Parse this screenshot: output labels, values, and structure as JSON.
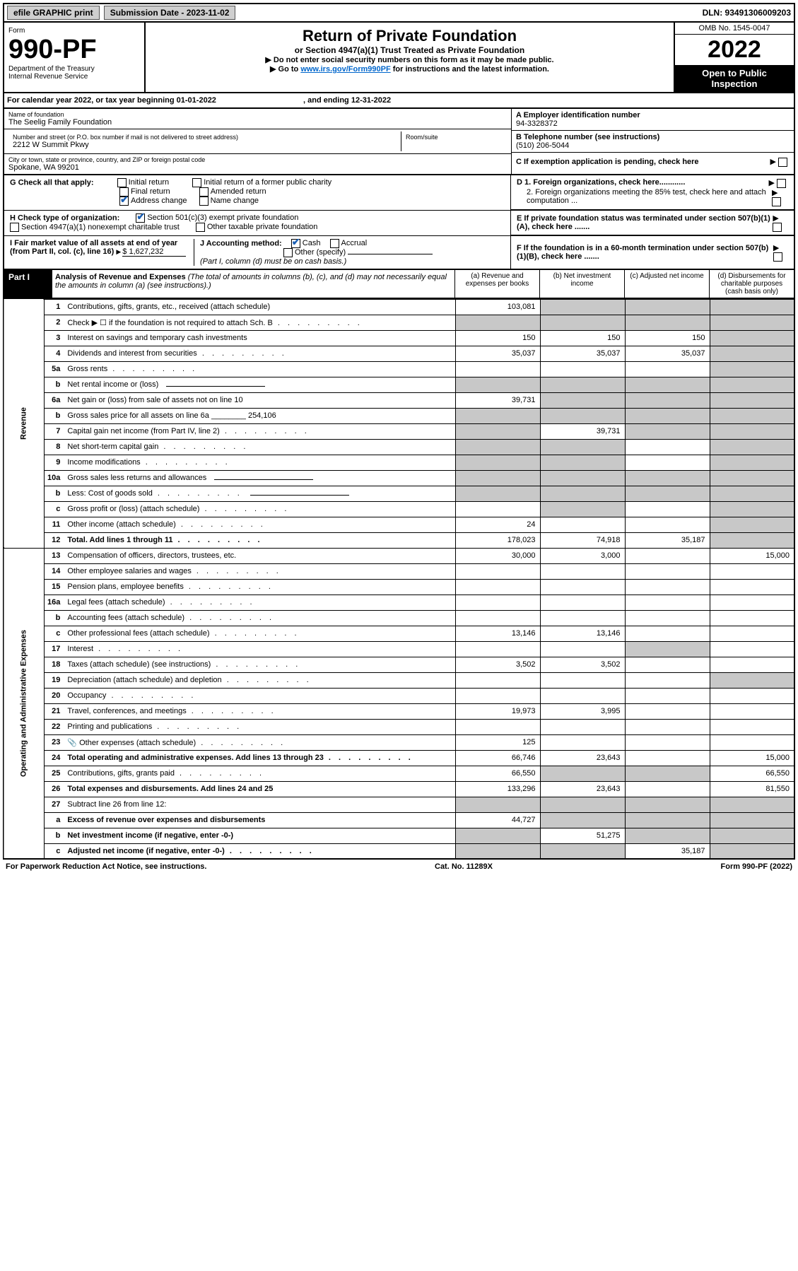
{
  "top": {
    "efile": "efile GRAPHIC print",
    "subdate_label": "Submission Date - 2023-11-02",
    "dln": "DLN: 93491306009203"
  },
  "header": {
    "form_label": "Form",
    "form_no": "990-PF",
    "dept": "Department of the Treasury",
    "irs": "Internal Revenue Service",
    "title": "Return of Private Foundation",
    "subtitle": "or Section 4947(a)(1) Trust Treated as Private Foundation",
    "instr1": "▶ Do not enter social security numbers on this form as it may be made public.",
    "instr2_pre": "▶ Go to ",
    "instr2_link": "www.irs.gov/Form990PF",
    "instr2_post": " for instructions and the latest information.",
    "omb": "OMB No. 1545-0047",
    "year": "2022",
    "open": "Open to Public Inspection"
  },
  "cal": {
    "text_pre": "For calendar year 2022, or tax year beginning ",
    "begin": "01-01-2022",
    "mid": " , and ending ",
    "end": "12-31-2022"
  },
  "name": {
    "label": "Name of foundation",
    "value": "The Seelig Family Foundation",
    "addr_label": "Number and street (or P.O. box number if mail is not delivered to street address)",
    "addr": "2212 W Summit Pkwy",
    "room_label": "Room/suite",
    "city_label": "City or town, state or province, country, and ZIP or foreign postal code",
    "city": "Spokane, WA  99201"
  },
  "right": {
    "a_label": "A Employer identification number",
    "a_val": "94-3328372",
    "b_label": "B Telephone number (see instructions)",
    "b_val": "(510) 206-5044",
    "c_label": "C If exemption application is pending, check here",
    "d1": "D 1. Foreign organizations, check here............",
    "d2": "2. Foreign organizations meeting the 85% test, check here and attach computation ...",
    "e": "E  If private foundation status was terminated under section 507(b)(1)(A), check here .......",
    "f": "F  If the foundation is in a 60-month termination under section 507(b)(1)(B), check here ......."
  },
  "g": {
    "label": "G Check all that apply:",
    "opts": [
      "Initial return",
      "Final return",
      "Address change",
      "Initial return of a former public charity",
      "Amended return",
      "Name change"
    ]
  },
  "h": {
    "label": "H Check type of organization:",
    "o1": "Section 501(c)(3) exempt private foundation",
    "o2": "Section 4947(a)(1) nonexempt charitable trust",
    "o3": "Other taxable private foundation"
  },
  "i": {
    "label": "I Fair market value of all assets at end of year (from Part II, col. (c), line 16)",
    "val": "$  1,627,232"
  },
  "j": {
    "label": "J Accounting method:",
    "cash": "Cash",
    "accrual": "Accrual",
    "other": "Other (specify)",
    "note": "(Part I, column (d) must be on cash basis.)"
  },
  "part1": {
    "tag": "Part I",
    "title": "Analysis of Revenue and Expenses",
    "note": " (The total of amounts in columns (b), (c), and (d) may not necessarily equal the amounts in column (a) (see instructions).)",
    "ca": "(a)  Revenue and expenses per books",
    "cb": "(b)  Net investment income",
    "cc": "(c)  Adjusted net income",
    "cd": "(d)  Disbursements for charitable purposes (cash basis only)"
  },
  "side": {
    "rev": "Revenue",
    "exp": "Operating and Administrative Expenses"
  },
  "rows": [
    {
      "n": "1",
      "d": "Contributions, gifts, grants, etc., received (attach schedule)",
      "a": "103,081",
      "b": "",
      "c": "",
      "dd": "",
      "ga": false,
      "gb": true,
      "gc": true,
      "gd": true
    },
    {
      "n": "2",
      "d": "Check ▶ ☐ if the foundation is not required to attach Sch. B",
      "a": null,
      "ga": true,
      "gb": true,
      "gc": true,
      "gd": true,
      "short": true,
      "dots": true
    },
    {
      "n": "3",
      "d": "Interest on savings and temporary cash investments",
      "a": "150",
      "b": "150",
      "c": "150",
      "dd": "",
      "gd": true
    },
    {
      "n": "4",
      "d": "Dividends and interest from securities",
      "a": "35,037",
      "b": "35,037",
      "c": "35,037",
      "dd": "",
      "gd": true,
      "dots": true
    },
    {
      "n": "5a",
      "d": "Gross rents",
      "a": "",
      "b": "",
      "c": "",
      "dd": "",
      "gd": true,
      "dots": true
    },
    {
      "n": "b",
      "d": "Net rental income or (loss)",
      "a": null,
      "ga": true,
      "gb": true,
      "gc": true,
      "gd": true,
      "input": true
    },
    {
      "n": "6a",
      "d": "Net gain or (loss) from sale of assets not on line 10",
      "a": "39,731",
      "b": "",
      "c": "",
      "dd": "",
      "gb": true,
      "gc": true,
      "gd": true
    },
    {
      "n": "b",
      "d": "Gross sales price for all assets on line 6a",
      "a": null,
      "ga": true,
      "gb": true,
      "gc": true,
      "gd": true,
      "inlineval": "254,106"
    },
    {
      "n": "7",
      "d": "Capital gain net income (from Part IV, line 2)",
      "a": "",
      "b": "39,731",
      "c": "",
      "dd": "",
      "ga": true,
      "gc": true,
      "gd": true,
      "dots": true
    },
    {
      "n": "8",
      "d": "Net short-term capital gain",
      "a": "",
      "b": "",
      "c": "",
      "dd": "",
      "ga": true,
      "gb": true,
      "gd": true,
      "dots": true
    },
    {
      "n": "9",
      "d": "Income modifications",
      "a": "",
      "b": "",
      "c": "",
      "dd": "",
      "ga": true,
      "gb": true,
      "gd": true,
      "dots": true
    },
    {
      "n": "10a",
      "d": "Gross sales less returns and allowances",
      "a": null,
      "ga": true,
      "gb": true,
      "gc": true,
      "gd": true,
      "input": true
    },
    {
      "n": "b",
      "d": "Less: Cost of goods sold",
      "a": null,
      "ga": true,
      "gb": true,
      "gc": true,
      "gd": true,
      "input": true,
      "dots": true
    },
    {
      "n": "c",
      "d": "Gross profit or (loss) (attach schedule)",
      "a": "",
      "b": "",
      "c": "",
      "dd": "",
      "gb": true,
      "gd": true,
      "dots": true
    },
    {
      "n": "11",
      "d": "Other income (attach schedule)",
      "a": "24",
      "b": "",
      "c": "",
      "dd": "",
      "gd": true,
      "dots": true
    },
    {
      "n": "12",
      "d": "Total. Add lines 1 through 11",
      "a": "178,023",
      "b": "74,918",
      "c": "35,187",
      "dd": "",
      "bold": true,
      "gd": true,
      "dots": true
    },
    {
      "n": "13",
      "d": "Compensation of officers, directors, trustees, etc.",
      "a": "30,000",
      "b": "3,000",
      "c": "",
      "dd": "15,000"
    },
    {
      "n": "14",
      "d": "Other employee salaries and wages",
      "a": "",
      "b": "",
      "c": "",
      "dd": "",
      "dots": true
    },
    {
      "n": "15",
      "d": "Pension plans, employee benefits",
      "a": "",
      "b": "",
      "c": "",
      "dd": "",
      "dots": true
    },
    {
      "n": "16a",
      "d": "Legal fees (attach schedule)",
      "a": "",
      "b": "",
      "c": "",
      "dd": "",
      "dots": true
    },
    {
      "n": "b",
      "d": "Accounting fees (attach schedule)",
      "a": "",
      "b": "",
      "c": "",
      "dd": "",
      "dots": true
    },
    {
      "n": "c",
      "d": "Other professional fees (attach schedule)",
      "a": "13,146",
      "b": "13,146",
      "c": "",
      "dd": "",
      "dots": true
    },
    {
      "n": "17",
      "d": "Interest",
      "a": "",
      "b": "",
      "c": "",
      "dd": "",
      "gc": true,
      "dots": true
    },
    {
      "n": "18",
      "d": "Taxes (attach schedule) (see instructions)",
      "a": "3,502",
      "b": "3,502",
      "c": "",
      "dd": "",
      "dots": true
    },
    {
      "n": "19",
      "d": "Depreciation (attach schedule) and depletion",
      "a": "",
      "b": "",
      "c": "",
      "dd": "",
      "gd": true,
      "dots": true
    },
    {
      "n": "20",
      "d": "Occupancy",
      "a": "",
      "b": "",
      "c": "",
      "dd": "",
      "dots": true
    },
    {
      "n": "21",
      "d": "Travel, conferences, and meetings",
      "a": "19,973",
      "b": "3,995",
      "c": "",
      "dd": "",
      "dots": true
    },
    {
      "n": "22",
      "d": "Printing and publications",
      "a": "",
      "b": "",
      "c": "",
      "dd": "",
      "dots": true
    },
    {
      "n": "23",
      "d": "Other expenses (attach schedule)",
      "a": "125",
      "b": "",
      "c": "",
      "dd": "",
      "icon": true,
      "dots": true
    },
    {
      "n": "24",
      "d": "Total operating and administrative expenses. Add lines 13 through 23",
      "a": "66,746",
      "b": "23,643",
      "c": "",
      "dd": "15,000",
      "bold": true,
      "dots": true
    },
    {
      "n": "25",
      "d": "Contributions, gifts, grants paid",
      "a": "66,550",
      "b": "",
      "c": "",
      "dd": "66,550",
      "gb": true,
      "gc": true,
      "dots": true
    },
    {
      "n": "26",
      "d": "Total expenses and disbursements. Add lines 24 and 25",
      "a": "133,296",
      "b": "23,643",
      "c": "",
      "dd": "81,550",
      "bold": true
    },
    {
      "n": "27",
      "d": "Subtract line 26 from line 12:",
      "a": null,
      "ga": true,
      "gb": true,
      "gc": true,
      "gd": true
    },
    {
      "n": "a",
      "d": "Excess of revenue over expenses and disbursements",
      "a": "44,727",
      "b": "",
      "c": "",
      "dd": "",
      "bold": true,
      "gb": true,
      "gc": true,
      "gd": true
    },
    {
      "n": "b",
      "d": "Net investment income (if negative, enter -0-)",
      "a": "",
      "b": "51,275",
      "c": "",
      "dd": "",
      "bold": true,
      "ga": true,
      "gc": true,
      "gd": true
    },
    {
      "n": "c",
      "d": "Adjusted net income (if negative, enter -0-)",
      "a": "",
      "b": "",
      "c": "35,187",
      "dd": "",
      "bold": true,
      "ga": true,
      "gb": true,
      "gd": true,
      "dots": true
    }
  ],
  "foot": {
    "left": "For Paperwork Reduction Act Notice, see instructions.",
    "mid": "Cat. No. 11289X",
    "right": "Form 990-PF (2022)"
  }
}
